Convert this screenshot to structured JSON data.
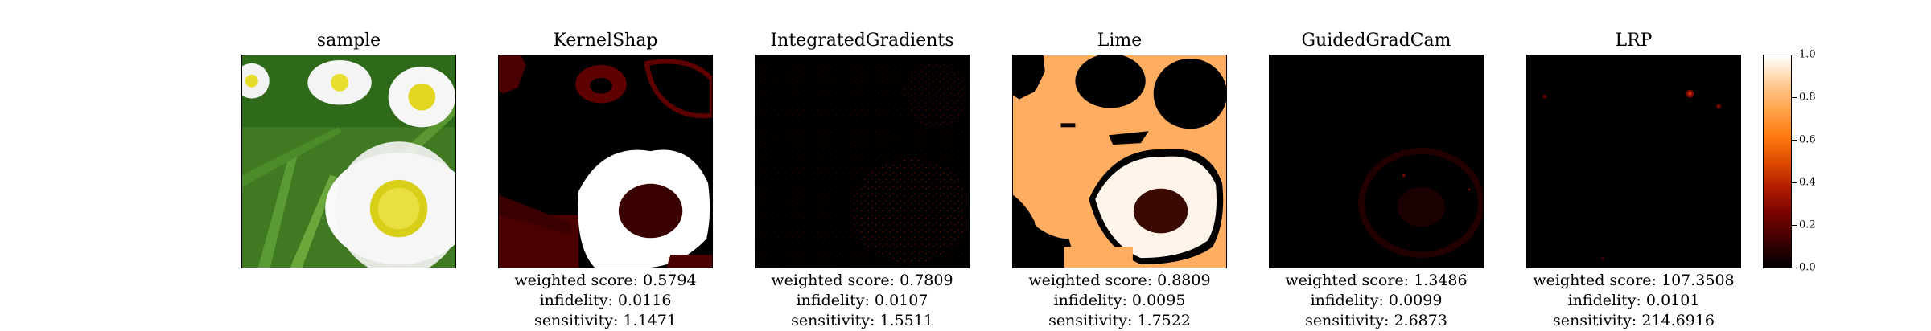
{
  "panels": [
    {
      "title": "sample",
      "metrics": null
    },
    {
      "title": "KernelShap",
      "metrics": {
        "weighted": "weighted score: 0.5794",
        "infidelity": "infidelity: 0.0116",
        "sensitivity": "sensitivity: 1.1471"
      }
    },
    {
      "title": "IntegratedGradients",
      "metrics": {
        "weighted": "weighted score: 0.7809",
        "infidelity": "infidelity: 0.0107",
        "sensitivity": "sensitivity: 1.5511"
      }
    },
    {
      "title": "Lime",
      "metrics": {
        "weighted": "weighted score: 0.8809",
        "infidelity": "infidelity: 0.0095",
        "sensitivity": "sensitivity: 1.7522"
      }
    },
    {
      "title": "GuidedGradCam",
      "metrics": {
        "weighted": "weighted score: 1.3486",
        "infidelity": "infidelity: 0.0099",
        "sensitivity": "sensitivity: 2.6873"
      }
    },
    {
      "title": "LRP",
      "metrics": {
        "weighted": "weighted score: 107.3508",
        "infidelity": "infidelity: 0.0101",
        "sensitivity": "sensitivity: 214.6916"
      }
    }
  ],
  "colorbar": {
    "ticks": [
      "1.0",
      "0.8",
      "0.6",
      "0.4",
      "0.2",
      "0.0"
    ],
    "colormap": [
      "#000000",
      "#7a0400",
      "#e04c00",
      "#ffa24a",
      "#ffffff"
    ]
  }
}
